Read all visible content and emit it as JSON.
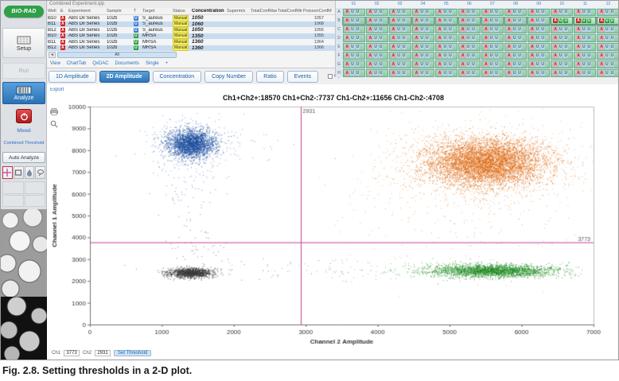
{
  "caption": "Fig. 2.8. Setting thresholds in a 2-D plot.",
  "sidebar": {
    "logo_text": "BIO-RAD",
    "setup_label": "Setup",
    "run_label": "Run",
    "analyze_label": "Analyze",
    "links": {
      "mixed": "Mixed",
      "combined": "Combined Threshold"
    },
    "auto_analyze_label": "Auto Analyze"
  },
  "table": {
    "title": "Combined Experiment.qlp",
    "columns": [
      "Well",
      "E",
      "Experiment",
      "Sample",
      "T",
      "Target",
      "Status",
      "Concentration",
      "Supermix",
      "TotalConfMax",
      "TotalConfMin",
      "PoissonConfM"
    ],
    "rows": [
      {
        "well": "B10",
        "flag": "A",
        "experiment": "ABS Dil Series",
        "sample": "102b",
        "type": "U",
        "type_color": "blue",
        "target": "S_aureus",
        "status": "Manual",
        "concentration": "1050",
        "supermix": "",
        "totalconfmax": "",
        "totalconfmin": "",
        "poisson": "1057"
      },
      {
        "well": "B11",
        "flag": "A",
        "experiment": "ABS Dil Series",
        "sample": "102b",
        "type": "U",
        "type_color": "blue",
        "target": "S_aureus",
        "status": "Manual",
        "concentration": "1060",
        "supermix": "",
        "totalconfmax": "",
        "totalconfmin": "",
        "poisson": "1068"
      },
      {
        "well": "B12",
        "flag": "A",
        "experiment": "ABS Dil Series",
        "sample": "102b",
        "type": "U",
        "type_color": "blue",
        "target": "S_aureus",
        "status": "Manual",
        "concentration": "1050",
        "supermix": "",
        "totalconfmax": "",
        "totalconfmin": "",
        "poisson": "1055"
      },
      {
        "well": "B10",
        "flag": "A",
        "experiment": "ABS Dil Series",
        "sample": "102b",
        "type": "U",
        "type_color": "green",
        "target": "MRSA",
        "status": "Manual",
        "concentration": "1350",
        "supermix": "",
        "totalconfmax": "",
        "totalconfmin": "",
        "poisson": "1355"
      },
      {
        "well": "B11",
        "flag": "A",
        "experiment": "ABS Dil Series",
        "sample": "102b",
        "type": "U",
        "type_color": "green",
        "target": "MRSA",
        "status": "Manual",
        "concentration": "1360",
        "supermix": "",
        "totalconfmax": "",
        "totalconfmin": "",
        "poisson": "1364"
      },
      {
        "well": "B12",
        "flag": "A",
        "experiment": "ABS Dil Series",
        "sample": "102b",
        "type": "U",
        "type_color": "green",
        "target": "MRSA",
        "status": "Manual",
        "concentration": "1360",
        "supermix": "",
        "totalconfmax": "",
        "totalconfmin": "",
        "poisson": "1366"
      }
    ],
    "nav_all_label": "All",
    "view_links": [
      "View",
      "ChartTab",
      "QxDAC",
      "Documents",
      "Single",
      "+"
    ]
  },
  "tabs": [
    {
      "label": "1D Amplitude",
      "active": false
    },
    {
      "label": "2D Amplitude",
      "active": true
    },
    {
      "label": "Concentration",
      "active": false
    },
    {
      "label": "Copy Number",
      "active": false
    },
    {
      "label": "Ratio",
      "active": false
    },
    {
      "label": "Events",
      "active": false
    }
  ],
  "options_checkbox_label": "Options",
  "plot_link_label": "Export",
  "plate": {
    "col_labels": [
      "01",
      "02",
      "03",
      "04",
      "05",
      "06",
      "07",
      "08",
      "09",
      "10",
      "11",
      "12"
    ],
    "row_labels": [
      "A",
      "B",
      "C",
      "D",
      "E",
      "F",
      "G",
      "H"
    ],
    "selected_wells": [
      "B10",
      "B11",
      "B12"
    ],
    "badge_letters": {
      "flag": "A",
      "ch1": "U",
      "ch2": "U"
    }
  },
  "chart_data": {
    "type": "scatter",
    "title": "Ch1+Ch2+:18570  Ch1+Ch2-:7737  Ch1-Ch2+:11656  Ch1-Ch2-:4708",
    "quadrant_counts": {
      "ch1pos_ch2pos": 18570,
      "ch1pos_ch2neg": 7737,
      "ch1neg_ch2pos": 11656,
      "ch1neg_ch2neg": 4708
    },
    "xlabel": "Channel 2 Amplitude",
    "ylabel": "Channel 1 Amplitude",
    "xlim": [
      0,
      7000
    ],
    "ylim": [
      0,
      10000
    ],
    "xtick_step": 1000,
    "ytick_step": 1000,
    "thresholds": {
      "ch1": 3773,
      "ch2": 2931,
      "color": "#c23f9e"
    },
    "clusters": [
      {
        "name": "FAM-positive core (Ch1+Ch2-)",
        "color": "#1f4f9e",
        "cx": 1400,
        "cy": 8300,
        "sx": 160,
        "sy": 320,
        "count": 2200,
        "alpha": 0.85
      },
      {
        "name": "FAM-positive halo",
        "color": "#2a5cae",
        "cx": 1400,
        "cy": 8250,
        "sx": 280,
        "sy": 600,
        "count": 450,
        "alpha": 0.55
      },
      {
        "name": "FAM rain",
        "color": "#2a5cae",
        "cx": 1430,
        "cy": 6000,
        "sx": 220,
        "sy": 1500,
        "count": 70,
        "alpha": 0.7
      },
      {
        "name": "double-positive core (Ch1+Ch2+)",
        "color": "#dd660f",
        "cx": 5500,
        "cy": 7450,
        "sx": 400,
        "sy": 540,
        "count": 5200,
        "alpha": 0.8
      },
      {
        "name": "double-positive halo",
        "color": "#e07a22",
        "cx": 5450,
        "cy": 7350,
        "sx": 700,
        "sy": 950,
        "count": 1300,
        "alpha": 0.5
      },
      {
        "name": "double-positive rain",
        "color": "#e07a22",
        "cx": 5100,
        "cy": 5200,
        "sx": 950,
        "sy": 1300,
        "count": 180,
        "alpha": 0.6
      },
      {
        "name": "HEX-positive core (Ch1-Ch2+)",
        "color": "#2f9e2f",
        "cx": 5600,
        "cy": 2480,
        "sx": 430,
        "sy": 140,
        "count": 2400,
        "alpha": 0.8
      },
      {
        "name": "HEX-positive dark specks",
        "color": "#14591c",
        "cx": 5600,
        "cy": 2480,
        "sx": 470,
        "sy": 160,
        "count": 350,
        "alpha": 0.8
      },
      {
        "name": "HEX rain",
        "color": "#2f9e2f",
        "cx": 4200,
        "cy": 2480,
        "sx": 950,
        "sy": 260,
        "count": 130,
        "alpha": 0.6
      },
      {
        "name": "negatives core (Ch1-Ch2-)",
        "color": "#3c3c3c",
        "cx": 1400,
        "cy": 2380,
        "sx": 150,
        "sy": 110,
        "count": 1300,
        "alpha": 0.85
      },
      {
        "name": "negative rain",
        "color": "#4a4a4a",
        "cx": 1500,
        "cy": 3200,
        "sx": 260,
        "sy": 650,
        "count": 45,
        "alpha": 0.7
      },
      {
        "name": "sparse negatives",
        "color": "#4a4a4a",
        "cx": 2400,
        "cy": 2450,
        "sx": 700,
        "sy": 260,
        "count": 28,
        "alpha": 0.7
      },
      {
        "name": "sparse blue",
        "color": "#2a5cae",
        "cx": 2100,
        "cy": 8100,
        "sx": 500,
        "sy": 500,
        "count": 35,
        "alpha": 0.6
      }
    ]
  },
  "chart_footer": {
    "ch1_label": "Ch1",
    "ch1_value": "3773",
    "ch2_label": "Ch2",
    "ch2_value": "2931",
    "apply_label": "Set Threshold"
  }
}
